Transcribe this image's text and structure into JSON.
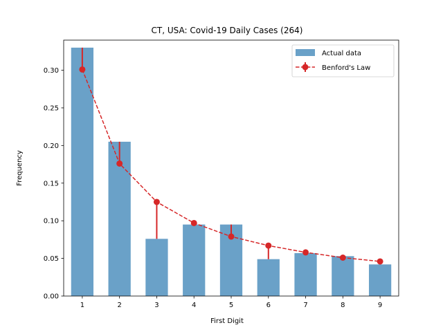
{
  "chart_data": {
    "type": "bar",
    "title": "CT, USA: Covid-19 Daily Cases (264)",
    "xlabel": "First Digit",
    "ylabel": "Frequency",
    "categories": [
      "1",
      "2",
      "3",
      "4",
      "5",
      "6",
      "7",
      "8",
      "9"
    ],
    "x": [
      1,
      2,
      3,
      4,
      5,
      6,
      7,
      8,
      9
    ],
    "xlim": [
      0.5,
      9.5
    ],
    "ylim": [
      0,
      0.34
    ],
    "yticks": [
      0.0,
      0.05,
      0.1,
      0.15,
      0.2,
      0.25,
      0.3
    ],
    "ytick_labels": [
      "0.00",
      "0.05",
      "0.10",
      "0.15",
      "0.20",
      "0.25",
      "0.30"
    ],
    "grid": false,
    "legend_position": "top-right",
    "series": [
      {
        "name": "Actual data",
        "type": "bar",
        "color": "#6aa1c8",
        "values": [
          0.33,
          0.205,
          0.076,
          0.095,
          0.095,
          0.049,
          0.057,
          0.053,
          0.042
        ]
      },
      {
        "name": "Benford's Law",
        "type": "line",
        "style": "dashed",
        "marker": "circle",
        "color": "#d62728",
        "values": [
          0.301,
          0.176,
          0.125,
          0.097,
          0.079,
          0.067,
          0.058,
          0.051,
          0.046
        ]
      }
    ]
  }
}
